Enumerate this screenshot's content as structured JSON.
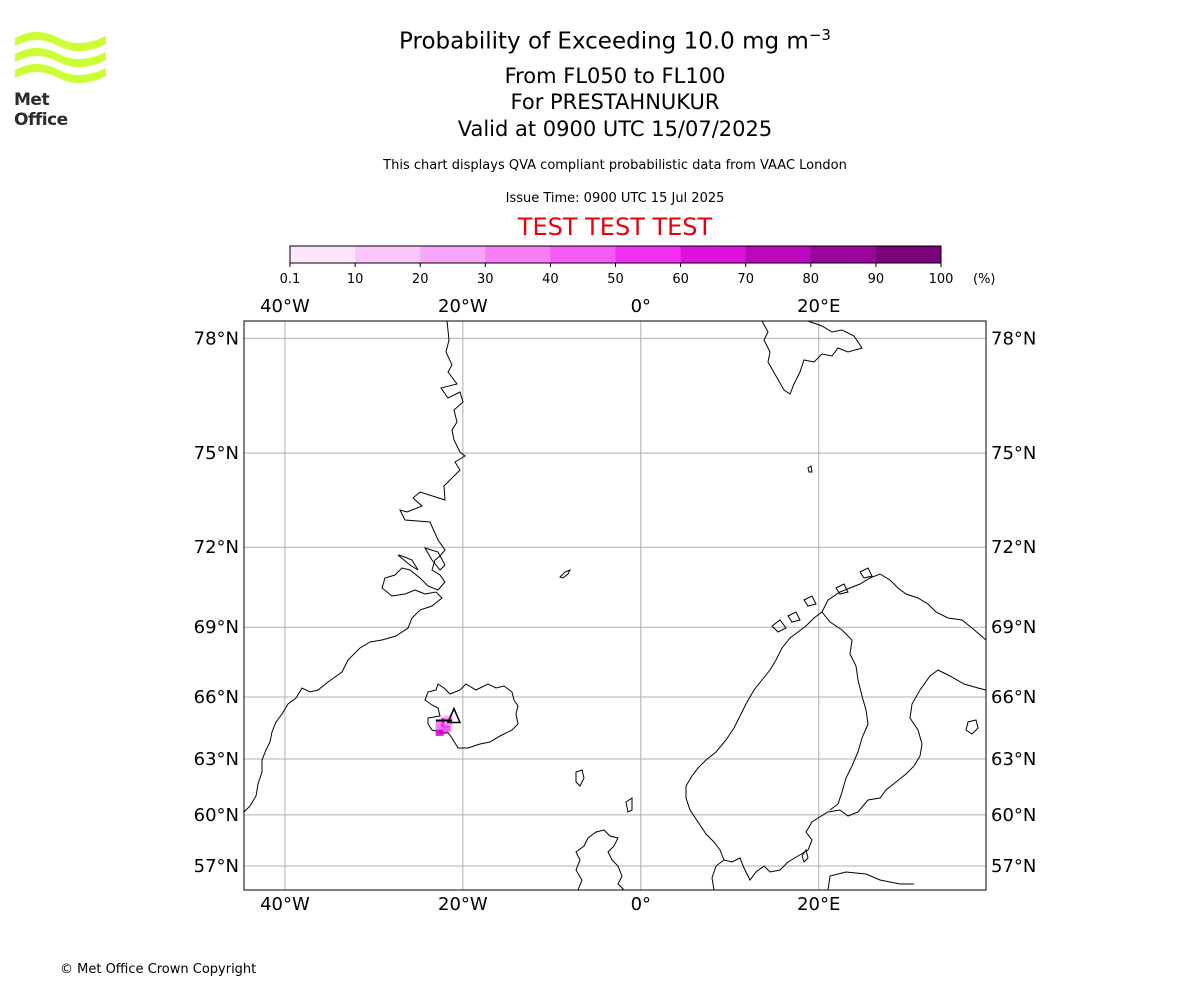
{
  "header": {
    "title_main": "Probability of Exceeding 10.0 mg m",
    "title_exp": "−3",
    "levels": "From FL050 to FL100",
    "volcano": "For PRESTAHNUKUR",
    "valid": "Valid at 0900 UTC 15/07/2025",
    "description": "This chart displays QVA compliant probabilistic data from VAAC London",
    "issue_time": "Issue Time: 0900 UTC 15 Jul 2025",
    "test_banner": "TEST TEST TEST"
  },
  "logo": {
    "text": "Met Office",
    "color": "#ccff33"
  },
  "footer": {
    "copyright": "© Met Office Crown Copyright"
  },
  "colorbar": {
    "unit": "(%)",
    "ticks": [
      "0.1",
      "10",
      "20",
      "30",
      "40",
      "50",
      "60",
      "70",
      "80",
      "90",
      "100"
    ],
    "colors": [
      "#fde5fd",
      "#fbc6fb",
      "#f8a4f8",
      "#f67ef6",
      "#f45af4",
      "#f12ef1",
      "#dd12dd",
      "#bc08bc",
      "#9a059a",
      "#7a037a"
    ]
  },
  "map": {
    "lon_labels": [
      "40°W",
      "20°W",
      "0°",
      "20°E"
    ],
    "lon_values": [
      -40,
      -20,
      0,
      20
    ],
    "lat_labels": [
      "78°N",
      "75°N",
      "72°N",
      "69°N",
      "66°N",
      "63°N",
      "60°N",
      "57°N"
    ],
    "lat_values": [
      78,
      75,
      72,
      69,
      66,
      63,
      60,
      57
    ],
    "extent": {
      "lon_min": -44.6,
      "lon_max": 38.8,
      "lat_min": 55.5,
      "lat_max": 78.4
    },
    "volcano_marker": {
      "lon": -21.0,
      "lat": 64.9
    },
    "plume_cells": [
      {
        "lon": -22.6,
        "lat": 64.4,
        "category": 6
      },
      {
        "lon": -22.2,
        "lat": 64.5,
        "category": 7
      },
      {
        "lon": -21.8,
        "lat": 64.6,
        "category": 4
      },
      {
        "lon": -22.6,
        "lat": 64.7,
        "category": 3
      },
      {
        "lon": -22.0,
        "lat": 64.8,
        "category": 5
      },
      {
        "lon": -21.6,
        "lat": 64.9,
        "category": 2
      }
    ]
  }
}
